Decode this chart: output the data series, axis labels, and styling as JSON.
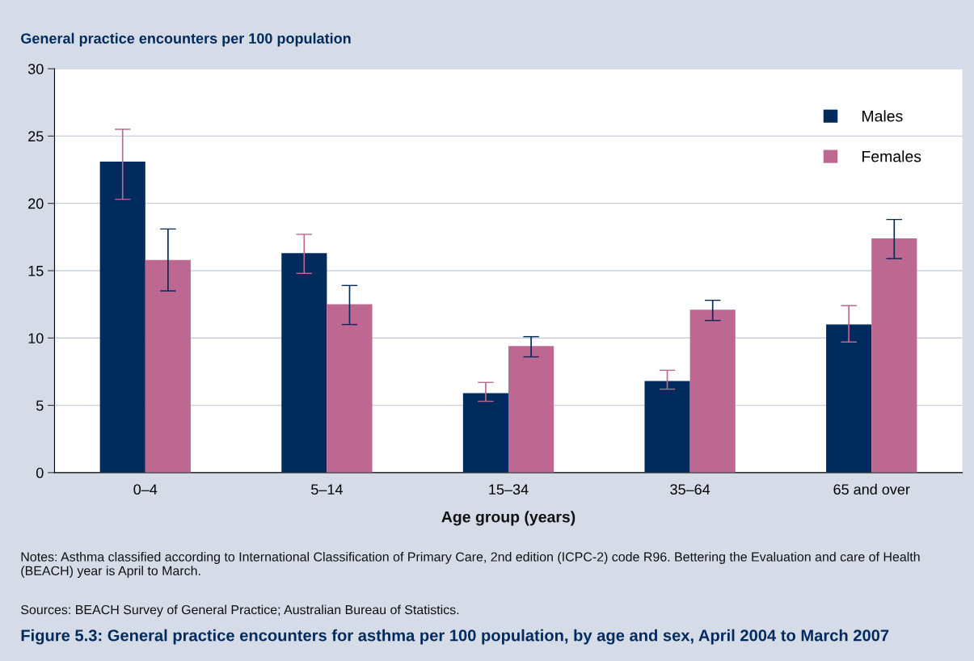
{
  "chart_data": {
    "type": "bar",
    "title": "Figure 5.3: General practice encounters for asthma per 100 population, by age and sex, April 2004 to March 2007",
    "ylabel": "General practice encounters per 100 population",
    "xlabel": "Age group (years)",
    "categories": [
      "0–4",
      "5–14",
      "15–34",
      "35–64",
      "65 and over"
    ],
    "series": [
      {
        "name": "Males",
        "color": "#002b5c",
        "values": [
          23.1,
          16.3,
          5.9,
          6.8,
          11.0
        ],
        "errors": [
          [
            20.3,
            25.5
          ],
          [
            14.8,
            17.7
          ],
          [
            5.3,
            6.7
          ],
          [
            6.2,
            7.6
          ],
          [
            9.7,
            12.4
          ]
        ]
      },
      {
        "name": "Females",
        "color": "#bc6891",
        "values": [
          15.8,
          12.5,
          9.4,
          12.1,
          17.4
        ],
        "errors": [
          [
            13.5,
            18.1
          ],
          [
            11.0,
            13.9
          ],
          [
            8.6,
            10.1
          ],
          [
            11.3,
            12.8
          ],
          [
            15.9,
            18.8
          ]
        ]
      }
    ],
    "ylim": [
      0,
      30
    ],
    "yticks": [
      0,
      5,
      10,
      15,
      20,
      25,
      30
    ],
    "grid": "y",
    "legend": "top right",
    "annotations": [
      "Notes: Asthma classified according to International Classification of Primary Care, 2nd edition (ICPC-2) code R96. Bettering the Evaluation and care of Health (BEACH) year is April to March.",
      "Sources: BEACH Survey of General Practice; Australian Bureau of Statistics."
    ]
  }
}
